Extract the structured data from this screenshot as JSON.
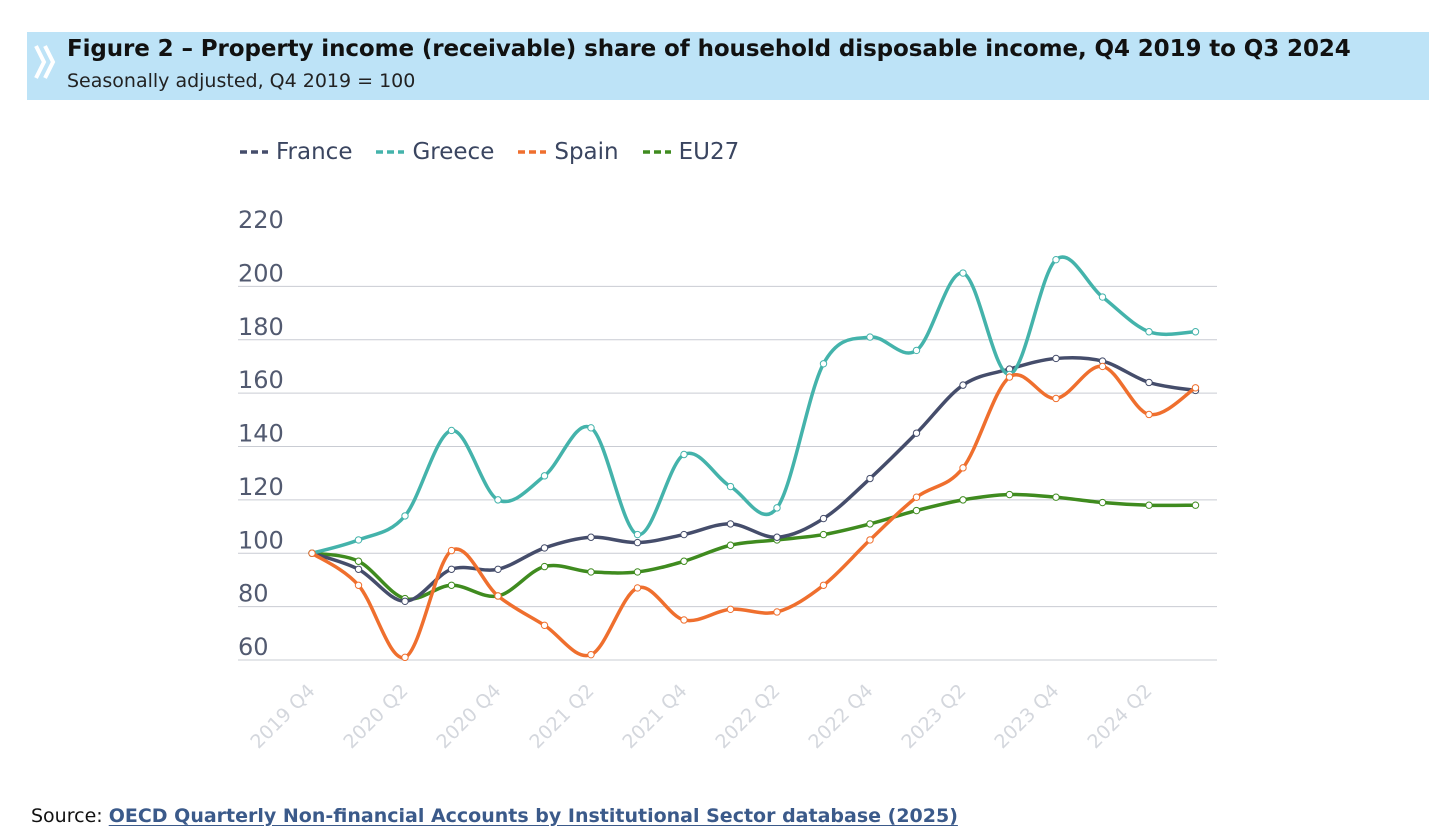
{
  "header": {
    "title": "Figure 2 – Property income (receivable) share of household disposable income, Q4 2019 to Q3 2024",
    "subtitle": "Seasonally adjusted, Q4 2019 = 100"
  },
  "legend": [
    {
      "name": "France",
      "color": "#454d6b"
    },
    {
      "name": "Greece",
      "color": "#44b3ab"
    },
    {
      "name": "Spain",
      "color": "#ef6f2e"
    },
    {
      "name": "EU27",
      "color": "#3f8b1f"
    }
  ],
  "source": {
    "label": "Source:",
    "link_text": "OECD Quarterly Non-financial Accounts by Institutional Sector database (2025)"
  },
  "chart_data": {
    "type": "line",
    "x": [
      "2019 Q4",
      "2020 Q1",
      "2020 Q2",
      "2020 Q3",
      "2020 Q4",
      "2021 Q1",
      "2021 Q2",
      "2021 Q3",
      "2021 Q4",
      "2022 Q1",
      "2022 Q2",
      "2022 Q3",
      "2022 Q4",
      "2023 Q1",
      "2023 Q2",
      "2023 Q3",
      "2023 Q4",
      "2024 Q1",
      "2024 Q2",
      "2024 Q3"
    ],
    "x_tick_labels": [
      "2019 Q4",
      "2020 Q2",
      "2020 Q4",
      "2021 Q2",
      "2021 Q4",
      "2022 Q2",
      "2022 Q4",
      "2023 Q2",
      "2023 Q4",
      "2024 Q2"
    ],
    "y_ticks": [
      60,
      80,
      100,
      120,
      140,
      160,
      180,
      200,
      220
    ],
    "ylim": [
      60,
      220
    ],
    "grid": "horizontal",
    "legend_position": "top-left",
    "series": [
      {
        "name": "France",
        "color": "#454d6b",
        "values": [
          100,
          94,
          82,
          94,
          94,
          102,
          106,
          104,
          107,
          111,
          106,
          113,
          128,
          145,
          163,
          169,
          173,
          172,
          164,
          161
        ]
      },
      {
        "name": "Greece",
        "color": "#44b3ab",
        "values": [
          100,
          105,
          114,
          146,
          120,
          129,
          147,
          107,
          137,
          125,
          117,
          171,
          181,
          176,
          205,
          167,
          210,
          196,
          183,
          183
        ]
      },
      {
        "name": "Spain",
        "color": "#ef6f2e",
        "values": [
          100,
          88,
          61,
          101,
          84,
          73,
          62,
          87,
          75,
          79,
          78,
          88,
          105,
          121,
          132,
          166,
          158,
          170,
          152,
          162
        ]
      },
      {
        "name": "EU27",
        "color": "#3f8b1f",
        "values": [
          100,
          97,
          83,
          88,
          84,
          95,
          93,
          93,
          97,
          103,
          105,
          107,
          111,
          116,
          120,
          122,
          121,
          119,
          118,
          118
        ]
      }
    ]
  }
}
